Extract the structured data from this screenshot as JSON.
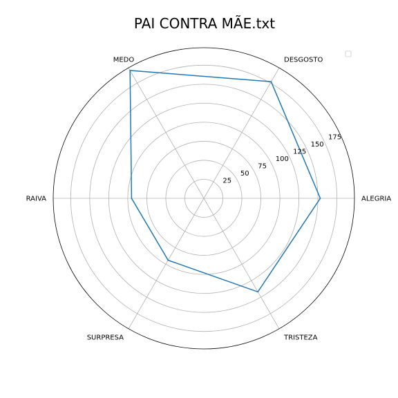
{
  "chart_data": {
    "type": "radar",
    "title": "PAI CONTRA MÃE.txt",
    "categories": [
      "ALEGRIA",
      "DESGOSTO",
      "MEDO",
      "RAIVA",
      "SURPRESA",
      "TRISTEZA"
    ],
    "rlim": [
      0,
      198
    ],
    "r_ticks": [
      25,
      50,
      75,
      100,
      125,
      150,
      175
    ],
    "series": [
      {
        "values": [
          153,
          177,
          194,
          95,
          94,
          142
        ],
        "color": "#1f77b4"
      }
    ],
    "grid": true,
    "legend": "top-right",
    "legend_entries": []
  }
}
